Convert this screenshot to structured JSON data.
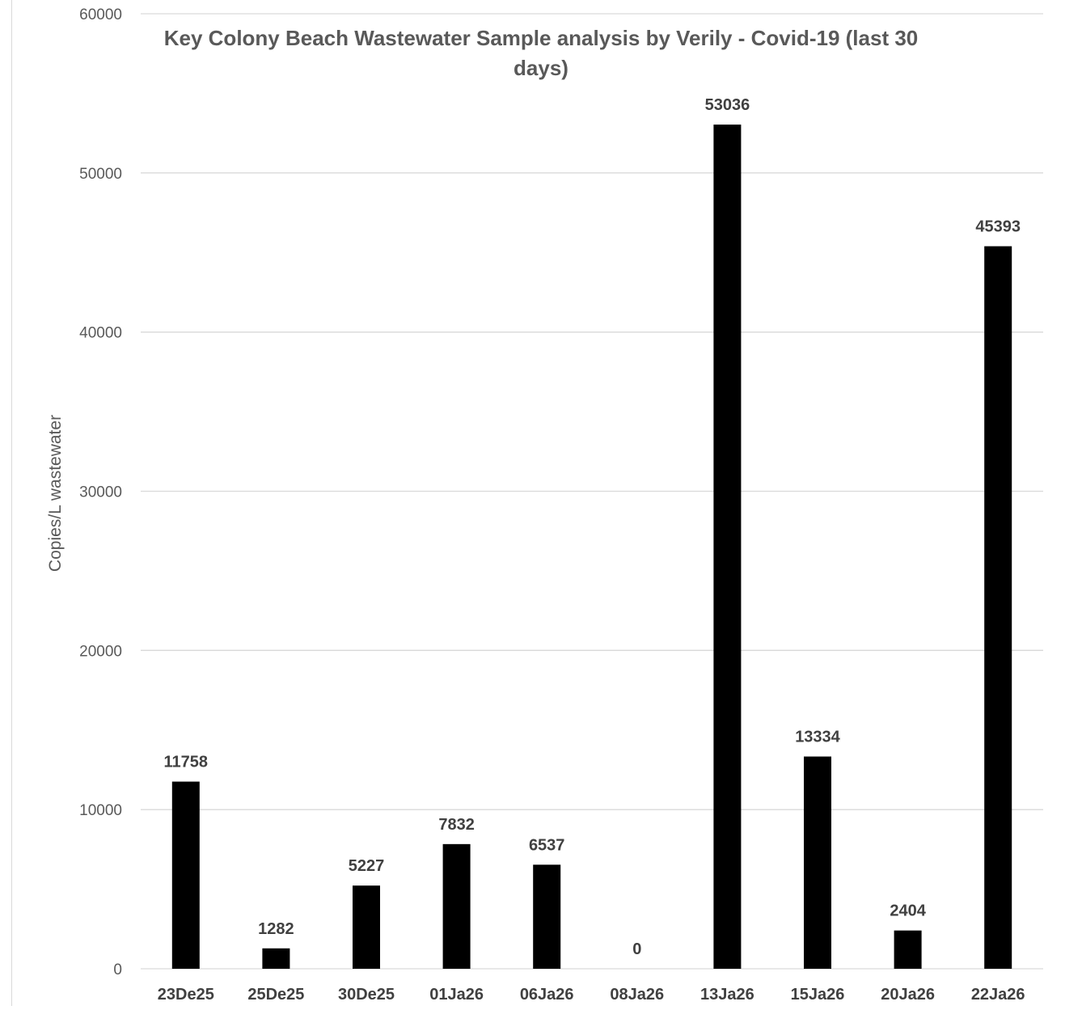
{
  "chart_data": {
    "type": "bar",
    "title": "Key Colony Beach Wastewater Sample analysis by Verily - Covid-19 (last 30 days)",
    "title_lines": [
      "Key Colony Beach Wastewater Sample analysis by Verily - Covid-19 (last 30",
      "days)"
    ],
    "xlabel": "",
    "ylabel": "Copies/L wastewater",
    "categories": [
      "23De25",
      "25De25",
      "30De25",
      "01Ja26",
      "06Ja26",
      "08Ja26",
      "13Ja26",
      "15Ja26",
      "20Ja26",
      "22Ja26"
    ],
    "values": [
      11758,
      1282,
      5227,
      7832,
      6537,
      0,
      53036,
      13334,
      2404,
      45393
    ],
    "data_labels": [
      "11758",
      "1282",
      "5227",
      "7832",
      "6537",
      "0",
      "53036",
      "13334",
      "2404",
      "45393"
    ],
    "ylim": [
      0,
      60000
    ],
    "yticks": [
      0,
      10000,
      20000,
      30000,
      40000,
      50000,
      60000
    ],
    "ytick_labels": [
      "0",
      "10000",
      "20000",
      "30000",
      "40000",
      "50000",
      "60000"
    ],
    "grid": true,
    "legend": "none",
    "colors": {
      "bar": "#000000",
      "grid": "#d9d9d9",
      "text": "#595959",
      "label": "#404040"
    }
  }
}
